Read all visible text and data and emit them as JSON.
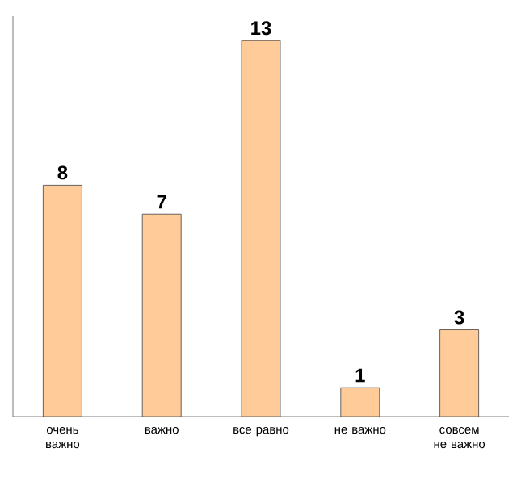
{
  "chart_data": {
    "type": "bar",
    "categories": [
      "очень важно",
      "важно",
      "все равно",
      "не важно",
      "совсем не важно"
    ],
    "values": [
      8,
      7,
      13,
      1,
      3
    ],
    "color": "#ffcc99",
    "data_labels": true
  }
}
